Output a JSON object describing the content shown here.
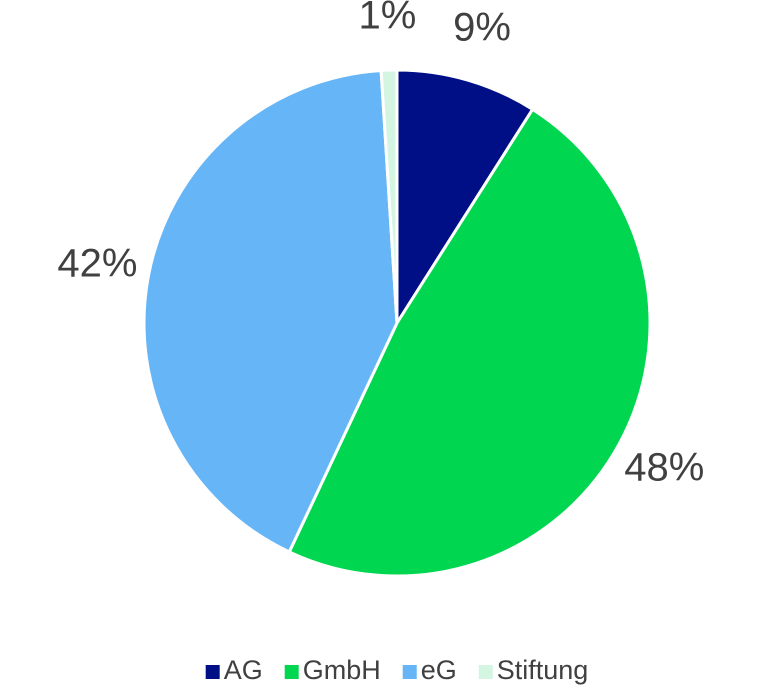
{
  "chart_data": {
    "type": "pie",
    "categories": [
      "AG",
      "GmbH",
      "eG",
      "Stiftung"
    ],
    "values": [
      9,
      48,
      42,
      1
    ],
    "value_labels": [
      "9%",
      "48%",
      "42%",
      "1%"
    ],
    "colors": [
      "#000f85",
      "#00d64f",
      "#66b5f7",
      "#d5f5e3"
    ],
    "legend": "bottom"
  }
}
